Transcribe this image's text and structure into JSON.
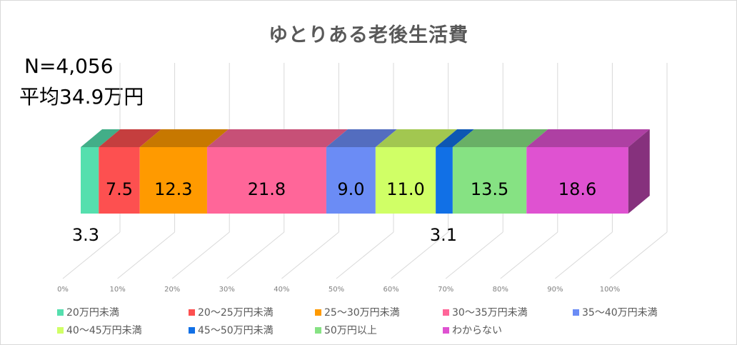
{
  "title": "ゆとりある老後生活費",
  "notes": {
    "n": "N=4,056",
    "average": "平均34.9万円"
  },
  "axis": {
    "ticks": [
      "0%",
      "10%",
      "20%",
      "30%",
      "40%",
      "50%",
      "60%",
      "70%",
      "80%",
      "90%",
      "100%"
    ]
  },
  "legend": [
    {
      "label": "20万円未満",
      "color": "#55dfae"
    },
    {
      "label": "20〜25万円未満",
      "color": "#fd5050"
    },
    {
      "label": "25〜30万円未満",
      "color": "#ff9a00"
    },
    {
      "label": "30〜35万円未満",
      "color": "#ff6699"
    },
    {
      "label": "35〜40万円未満",
      "color": "#6b8cf5"
    },
    {
      "label": "40〜45万円未満",
      "color": "#d0ff66"
    },
    {
      "label": "45〜50万円未満",
      "color": "#1170e6"
    },
    {
      "label": "50万円以上",
      "color": "#86e283"
    },
    {
      "label": "わからない",
      "color": "#df52d1"
    }
  ],
  "chart_data": {
    "type": "bar",
    "orientation": "horizontal",
    "stacked": "100%",
    "style": "3d",
    "title": "ゆとりある老後生活費",
    "annotations": [
      "N=4,056",
      "平均34.9万円"
    ],
    "categories": [
      "ゆとりある老後生活費"
    ],
    "series": [
      {
        "name": "20万円未満",
        "values": [
          3.3
        ],
        "color": "#55dfae"
      },
      {
        "name": "20〜25万円未満",
        "values": [
          7.5
        ],
        "color": "#fd5050"
      },
      {
        "name": "25〜30万円未満",
        "values": [
          12.3
        ],
        "color": "#ff9a00"
      },
      {
        "name": "30〜35万円未満",
        "values": [
          21.8
        ],
        "color": "#ff6699"
      },
      {
        "name": "35〜40万円未満",
        "values": [
          9.0
        ],
        "color": "#6b8cf5"
      },
      {
        "name": "40〜45万円未満",
        "values": [
          11.0
        ],
        "color": "#d0ff66"
      },
      {
        "name": "45〜50万円未満",
        "values": [
          3.1
        ],
        "color": "#1170e6"
      },
      {
        "name": "50万円以上",
        "values": [
          13.5
        ],
        "color": "#86e283"
      },
      {
        "name": "わからない",
        "values": [
          18.6
        ],
        "color": "#df52d1"
      }
    ],
    "data_labels": [
      "3.3",
      "7.5",
      "12.3",
      "21.8",
      "9.0",
      "11.0",
      "3.1",
      "13.5",
      "18.6"
    ],
    "xlabel": "",
    "ylabel": "",
    "xlim": [
      0,
      100
    ],
    "x_ticks": [
      "0%",
      "10%",
      "20%",
      "30%",
      "40%",
      "50%",
      "60%",
      "70%",
      "80%",
      "90%",
      "100%"
    ],
    "grid": true,
    "legend_position": "bottom"
  }
}
